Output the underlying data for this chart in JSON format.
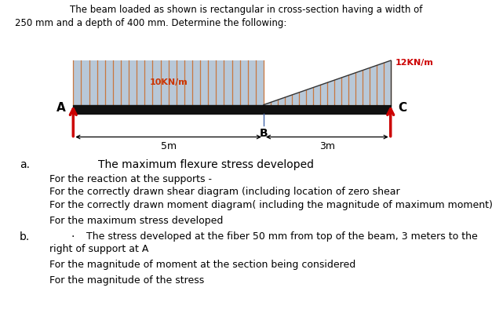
{
  "title_line1": "The beam loaded as shown is rectangular in cross-section having a width of",
  "title_line2": "250 mm and a depth of 400 mm. Determine the following:",
  "load_uniform_label": "10KN/m",
  "load_triangle_label": "12KN/m",
  "span_AB": "5m",
  "span_BC": "3m",
  "support_A_label": "A",
  "support_B_label": "B",
  "support_C_label": "C",
  "item_a_header": "The maximum flexure stress developed",
  "item_a1": "For the reaction at the supports -",
  "item_a2": "For the correctly drawn shear diagram (including location of zero shear",
  "item_a3": "For the correctly drawn moment diagram( including the magnitude of maximum moment)",
  "item_a4": "For the maximum stress developed",
  "item_b1": "For the magnitude of moment at the section being considered",
  "item_b2": "For the magnitude of the stress",
  "arrow_color": "#cc0000",
  "load_bg_color": "#b8c8d8",
  "stripe_color": "#c87840",
  "beam_color": "#111111"
}
